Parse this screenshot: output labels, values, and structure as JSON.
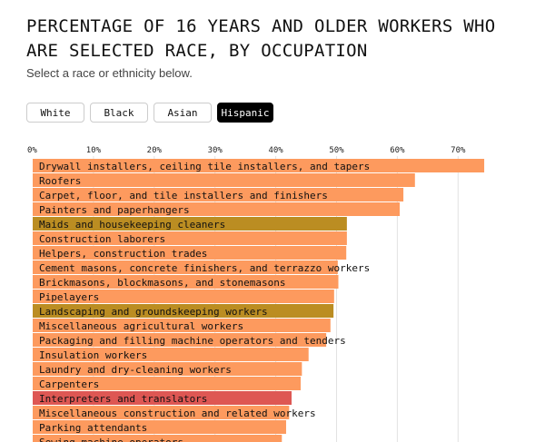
{
  "title": "PERCENTAGE OF 16 YEARS AND OLDER WORKERS WHO ARE SELECTED RACE, BY OCCUPATION",
  "subtitle": "Select a race or ethnicity below.",
  "buttons": [
    {
      "label": "White",
      "active": false
    },
    {
      "label": "Black",
      "active": false
    },
    {
      "label": "Asian",
      "active": false
    },
    {
      "label": "Hispanic",
      "active": true
    }
  ],
  "colors": {
    "default": "#fd9a5e",
    "highlight_gold": "#bb8d22",
    "highlight_red": "#de5753",
    "grid": "#e2e2e2"
  },
  "chart_data": {
    "type": "bar",
    "orientation": "horizontal",
    "title": "PERCENTAGE OF 16 YEARS AND OLDER WORKERS WHO ARE SELECTED RACE, BY OCCUPATION",
    "xlim": [
      0,
      80
    ],
    "xticks": [
      0,
      10,
      20,
      30,
      40,
      50,
      60,
      70
    ],
    "tick_labels": [
      "0%",
      "10%",
      "20%",
      "30%",
      "40%",
      "50%",
      "60%",
      "70%"
    ],
    "grid": true,
    "bars": [
      {
        "label": "Drywall installers, ceiling tile installers, and tapers",
        "value": 74.3,
        "color": "default"
      },
      {
        "label": "Roofers",
        "value": 62.9,
        "color": "default"
      },
      {
        "label": "Carpet, floor, and tile installers and finishers",
        "value": 61.0,
        "color": "default"
      },
      {
        "label": "Painters and paperhangers",
        "value": 60.4,
        "color": "default"
      },
      {
        "label": "Maids and housekeeping cleaners",
        "value": 51.7,
        "color": "highlight_gold"
      },
      {
        "label": "Construction laborers",
        "value": 51.7,
        "color": "default"
      },
      {
        "label": "Helpers, construction trades",
        "value": 51.6,
        "color": "default"
      },
      {
        "label": "Cement masons, concrete finishers, and terrazzo workers",
        "value": 50.2,
        "color": "default"
      },
      {
        "label": "Brickmasons, blockmasons, and stonemasons",
        "value": 50.3,
        "color": "default"
      },
      {
        "label": "Pipelayers",
        "value": 49.6,
        "color": "default"
      },
      {
        "label": "Landscaping and groundskeeping workers",
        "value": 49.5,
        "color": "highlight_gold"
      },
      {
        "label": "Miscellaneous agricultural workers",
        "value": 49.0,
        "color": "default"
      },
      {
        "label": "Packaging and filling machine operators and tenders",
        "value": 48.3,
        "color": "default"
      },
      {
        "label": "Insulation workers",
        "value": 45.4,
        "color": "default"
      },
      {
        "label": "Laundry and dry-cleaning workers",
        "value": 44.3,
        "color": "default"
      },
      {
        "label": "Carpenters",
        "value": 44.1,
        "color": "default"
      },
      {
        "label": "Interpreters and translators",
        "value": 42.6,
        "color": "highlight_red"
      },
      {
        "label": "Miscellaneous construction and related workers",
        "value": 42.2,
        "color": "default"
      },
      {
        "label": "Parking attendants",
        "value": 41.7,
        "color": "default"
      },
      {
        "label": "Sewing machine operators",
        "value": 41.0,
        "color": "default"
      }
    ]
  }
}
